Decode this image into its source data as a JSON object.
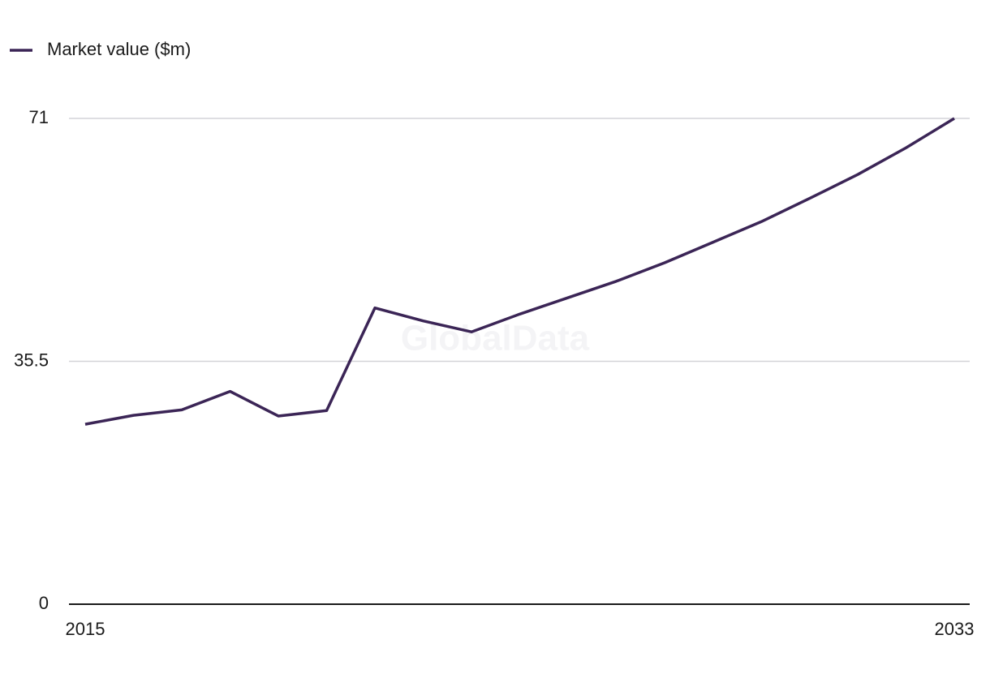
{
  "chart_data": {
    "type": "line",
    "watermark": "GlobalData",
    "x": [
      2015,
      2016,
      2017,
      2018,
      2019,
      2020,
      2021,
      2022,
      2023,
      2024,
      2025,
      2026,
      2027,
      2028,
      2029,
      2030,
      2031,
      2032,
      2033
    ],
    "series": [
      {
        "name": "Market value ($m)",
        "color": "#3b2556",
        "values": [
          26.3,
          27.6,
          28.4,
          31.1,
          27.5,
          28.3,
          43.3,
          41.4,
          39.8,
          42.4,
          44.8,
          47.2,
          49.9,
          52.9,
          55.9,
          59.3,
          62.8,
          66.7,
          71
        ]
      }
    ],
    "xlim": [
      2015,
      2033
    ],
    "xticks": [
      2015,
      2033
    ],
    "ylim": [
      0,
      71
    ],
    "yticks": [
      0,
      35.5,
      71
    ],
    "grid": true,
    "legend": "top-left"
  }
}
